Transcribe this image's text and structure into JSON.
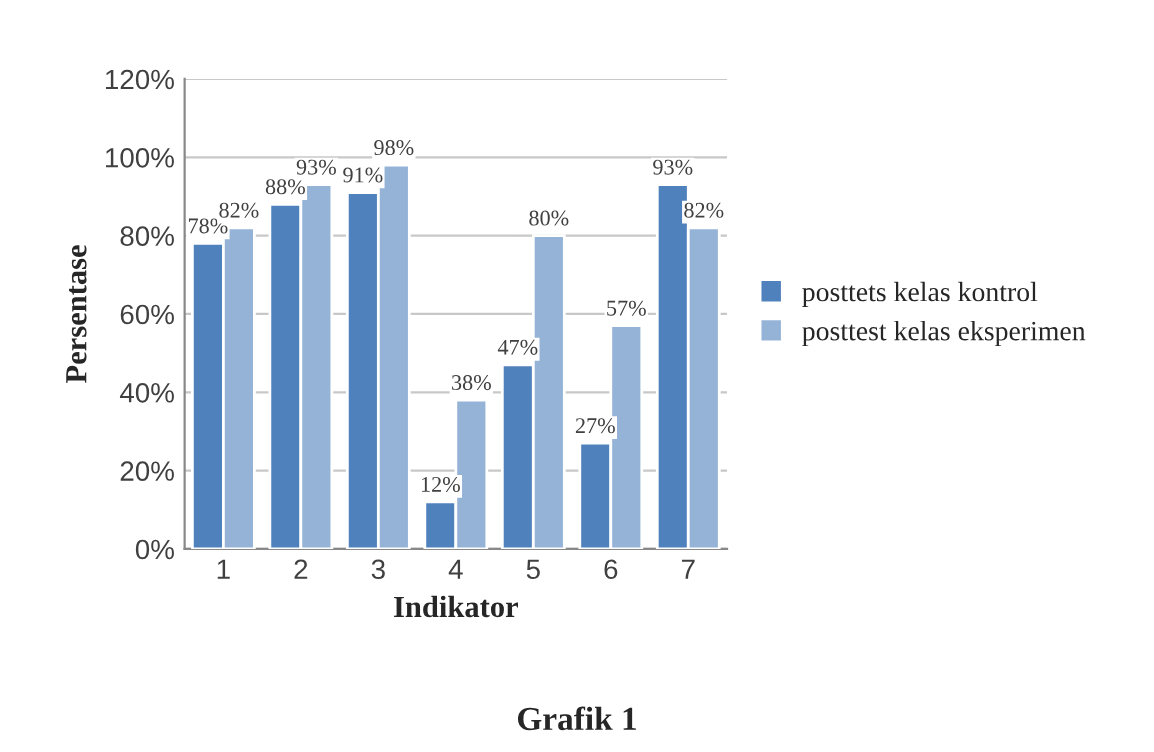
{
  "chart_data": {
    "type": "bar",
    "xlabel": "Indikator",
    "ylabel": "Persentase",
    "categories": [
      "1",
      "2",
      "3",
      "4",
      "5",
      "6",
      "7"
    ],
    "series": [
      {
        "name": "posttets kelas kontrol",
        "color": "#4f81bd",
        "values": [
          78,
          88,
          91,
          12,
          47,
          27,
          93
        ],
        "value_labels": [
          "78%",
          "88%",
          "91%",
          "12%",
          "47%",
          "27%",
          "93%"
        ]
      },
      {
        "name": "posttest kelas eksperimen",
        "color": "#95b3d7",
        "values": [
          82,
          93,
          98,
          38,
          80,
          57,
          82
        ],
        "value_labels": [
          "82%",
          "93%",
          "98%",
          "38%",
          "80%",
          "57%",
          "82%"
        ]
      }
    ],
    "ylim": [
      0,
      120
    ],
    "yticks": [
      {
        "value": 0,
        "label": "0%"
      },
      {
        "value": 20,
        "label": "20%"
      },
      {
        "value": 40,
        "label": "40%"
      },
      {
        "value": 60,
        "label": "60%"
      },
      {
        "value": 80,
        "label": "80%"
      },
      {
        "value": 100,
        "label": "100%"
      },
      {
        "value": 120,
        "label": "120%"
      }
    ],
    "grid": "y",
    "legend": "right",
    "annotations": [
      "Grafik 1"
    ]
  }
}
